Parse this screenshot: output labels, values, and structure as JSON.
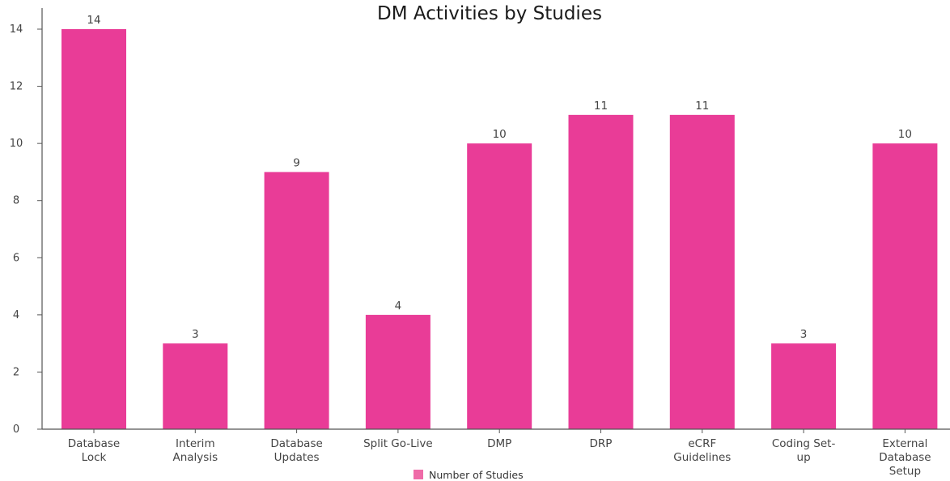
{
  "chart_data": {
    "type": "bar",
    "title": "DM Activities by Studies",
    "categories": [
      [
        "Database",
        "Lock"
      ],
      [
        "Interim",
        "Analysis"
      ],
      [
        "Database",
        "Updates"
      ],
      [
        "Split Go-Live"
      ],
      [
        "DMP"
      ],
      [
        "DRP"
      ],
      [
        "eCRF",
        "Guidelines"
      ],
      [
        "Coding Set-",
        "up"
      ],
      [
        "External",
        "Database",
        "Setup"
      ]
    ],
    "series": [
      {
        "name": "Number of Studies",
        "color": "#e93c97",
        "values": [
          14,
          3,
          9,
          4,
          10,
          11,
          11,
          3,
          10
        ]
      }
    ],
    "ylim": [
      0,
      14
    ],
    "yticks": [
      0,
      2,
      4,
      6,
      8,
      10,
      12,
      14
    ],
    "grid": false,
    "legend": "bottom-center",
    "data_labels": true
  }
}
